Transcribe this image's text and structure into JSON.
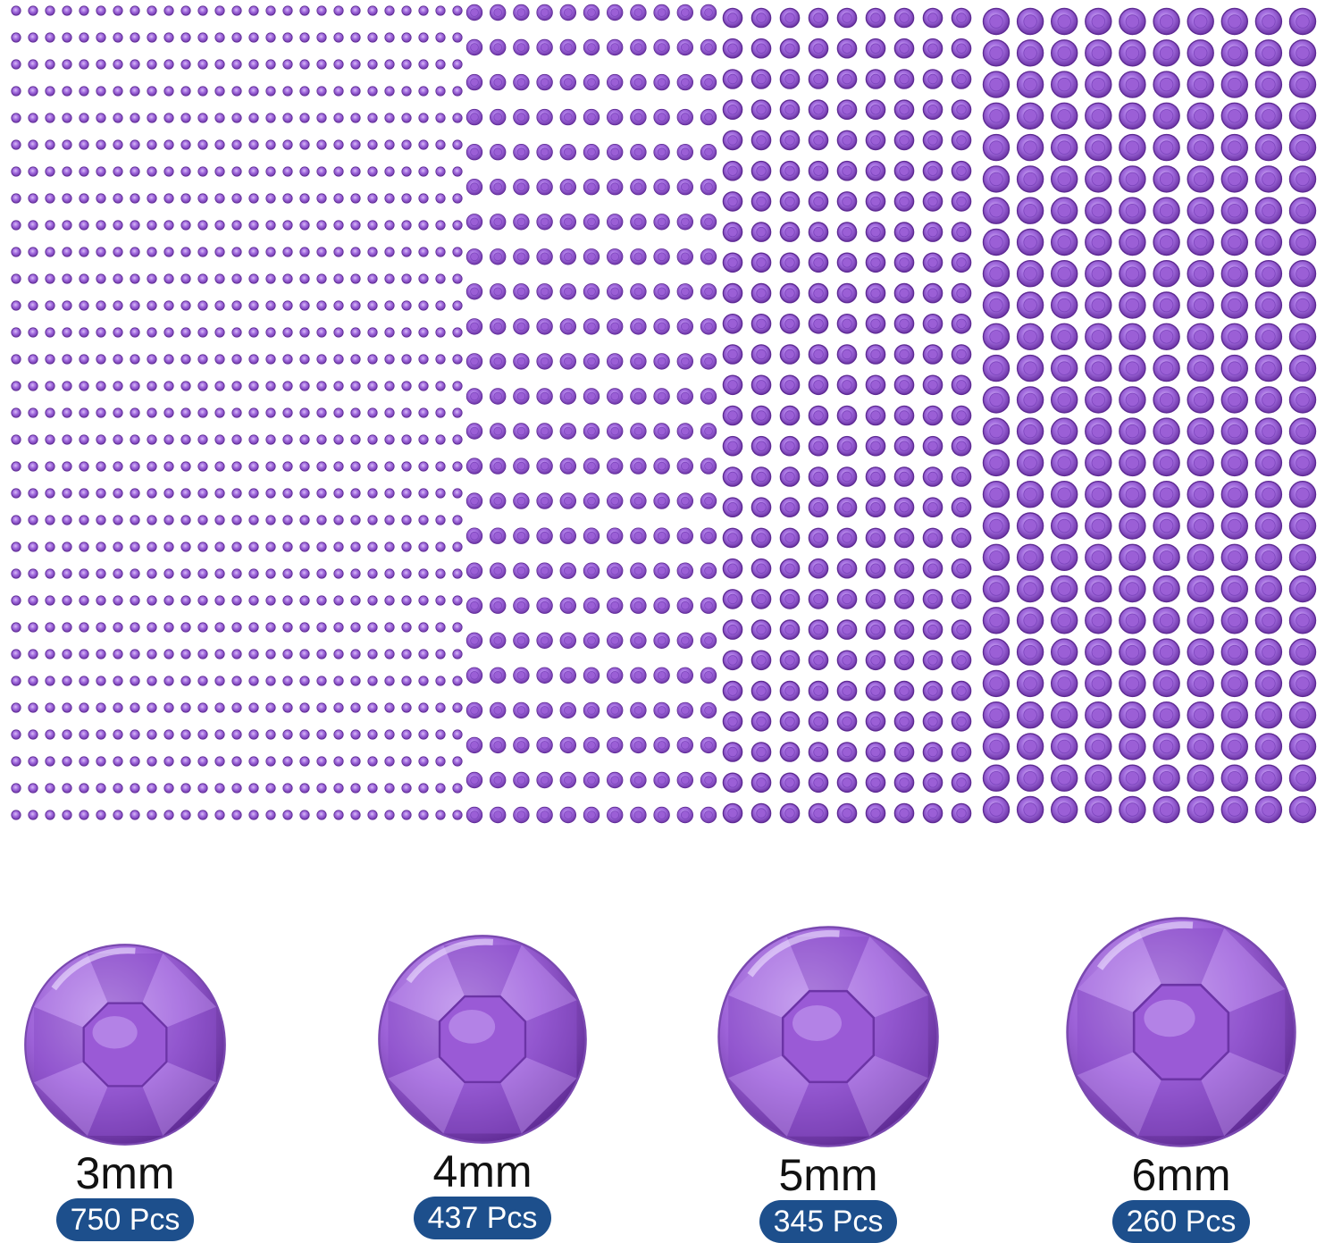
{
  "colors": {
    "gem_light": "#c9a6ef",
    "gem_mid": "#9b5fd6",
    "gem_dark": "#5e2b94",
    "badge": "#1d4f8c"
  },
  "sheets": [
    {
      "size": "3mm",
      "count_shown": 750
    },
    {
      "size": "4mm",
      "count_shown": 437
    },
    {
      "size": "5mm",
      "count_shown": 345
    },
    {
      "size": "6mm",
      "count_shown": 260
    }
  ],
  "gems": [
    {
      "size_label": "3mm",
      "count_label": "750 Pcs"
    },
    {
      "size_label": "4mm",
      "count_label": "437 Pcs"
    },
    {
      "size_label": "5mm",
      "count_label": "345 Pcs"
    },
    {
      "size_label": "6mm",
      "count_label": "260 Pcs"
    }
  ]
}
